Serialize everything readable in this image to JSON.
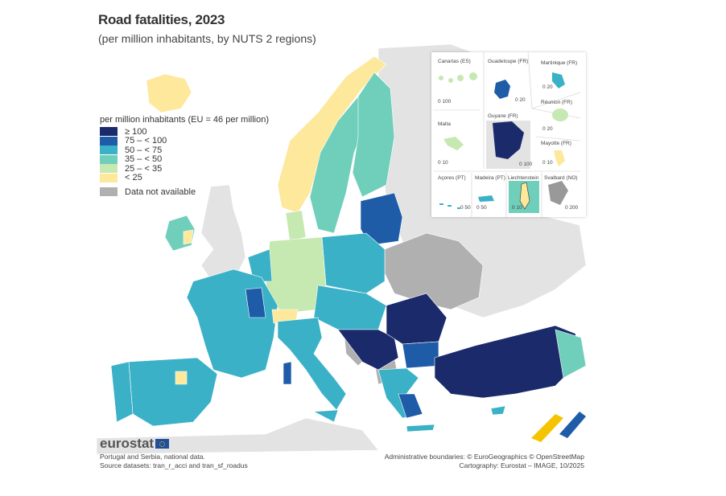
{
  "title": "Road fatalities, 2023",
  "subtitle": "(per million inhabitants, by NUTS 2 regions)",
  "legend": {
    "title": "per million inhabitants (EU = 46 per million)",
    "classes": [
      {
        "label": "≥ 100",
        "color": "#1b2a6b"
      },
      {
        "label": "75 – < 100",
        "color": "#1f5ca8"
      },
      {
        "label": "50 – < 75",
        "color": "#3bb1c8"
      },
      {
        "label": "35 – < 50",
        "color": "#6fcfbb"
      },
      {
        "label": "25 – < 35",
        "color": "#c6e8b1"
      },
      {
        "label": "< 25",
        "color": "#fde89b"
      }
    ],
    "na": {
      "label": "Data not available",
      "color": "#b0b0b0"
    }
  },
  "insets": {
    "canarias": {
      "label": "Canarias (ES)",
      "scale": "0   100"
    },
    "guadeloupe": {
      "label": "Guadeloupe (FR)",
      "scale": "0  20"
    },
    "martinique": {
      "label": "Martinique (FR)",
      "scale": "0  20"
    },
    "reunion": {
      "label": "Réunion (FR)",
      "scale": "0  20"
    },
    "malta": {
      "label": "Malta",
      "scale": "0  10"
    },
    "guyane": {
      "label": "Guyane (FR)",
      "scale": "0   100"
    },
    "mayotte": {
      "label": "Mayotte (FR)",
      "scale": "0 10"
    },
    "acores": {
      "label": "Açores (PT)",
      "scale": "0  50"
    },
    "madeira": {
      "label": "Madeira (PT)",
      "scale": "0    50"
    },
    "liechtenstein": {
      "label": "Liechtenstein",
      "scale": "0  10"
    },
    "svalbard": {
      "label": "Svalbard (NO)",
      "scale": "0    200"
    }
  },
  "logo": "eurostat",
  "footer": {
    "note1": "Portugal and Serbia, national data.",
    "note2": "Source datasets: tran_r_acci and tran_sf_roadus",
    "credit1": "Administrative boundaries: © EuroGeographics © OpenStreetMap",
    "credit2": "Cartography: Eurostat – IMAGE, 10/2025"
  },
  "colors": {
    "non_eu_land": "#e3e3e3",
    "border": "#555555"
  }
}
